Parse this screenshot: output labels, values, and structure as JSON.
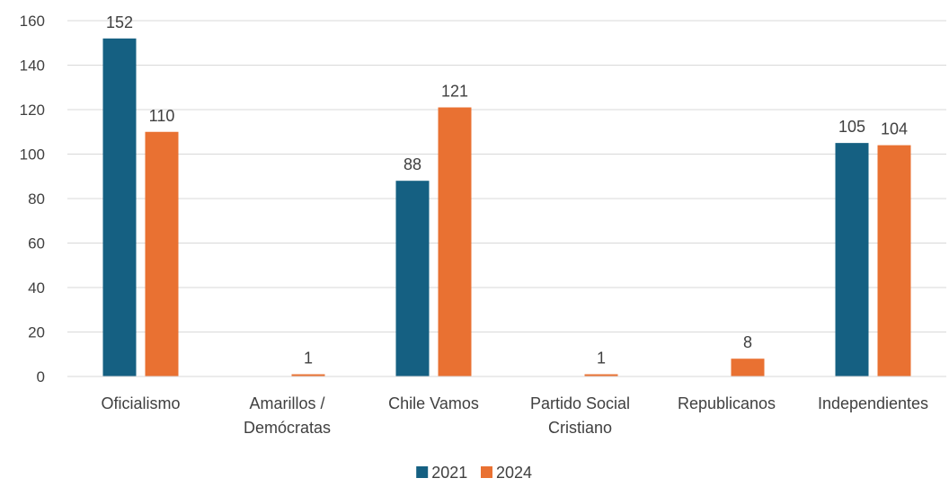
{
  "chart_data": {
    "type": "bar",
    "title": "",
    "xlabel": "",
    "ylabel": "",
    "categories": [
      [
        "Oficialismo"
      ],
      [
        "Amarillos /",
        "Demócratas"
      ],
      [
        "Chile Vamos"
      ],
      [
        "Partido Social",
        "Cristiano"
      ],
      [
        "Republicanos"
      ],
      [
        "Independientes"
      ]
    ],
    "series": [
      {
        "name": "2021",
        "color": "#156082",
        "values": [
          152,
          0,
          88,
          0,
          0,
          105
        ],
        "labels": [
          "152",
          "",
          "88",
          "",
          "",
          "105"
        ]
      },
      {
        "name": "2024",
        "color": "#E97132",
        "values": [
          110,
          1,
          121,
          1,
          8,
          104
        ],
        "labels": [
          "110",
          "1",
          "121",
          "1",
          "8",
          "104"
        ]
      }
    ],
    "ylim": [
      0,
      160
    ],
    "yticks": [
      "0",
      "20",
      "40",
      "60",
      "80",
      "100",
      "120",
      "140",
      "160"
    ],
    "grid": true,
    "legend": "bottom-center"
  }
}
